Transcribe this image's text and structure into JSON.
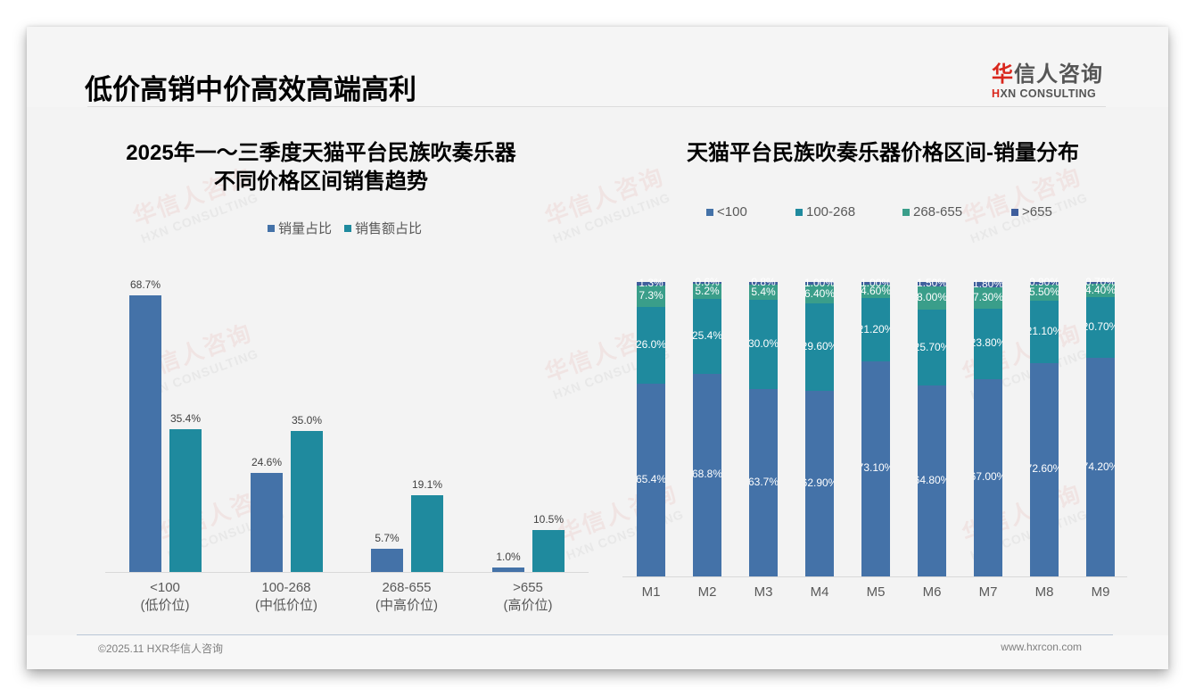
{
  "page": {
    "title": "低价高销中价高效高端高利",
    "logo": {
      "cn_accent": "华",
      "cn_rest": "信人咨询",
      "en_accent": "H",
      "en_rest": "XN CONSULTING"
    },
    "watermark": {
      "cn": "华信人咨询",
      "en": "HXN CONSULTING"
    },
    "footer": {
      "copyright": "©2025.11 HXR华信人咨询",
      "website": "www.hxrcon.com"
    },
    "colors": {
      "sales_volume": "#4472a8",
      "sales_amount": "#1f8a9e",
      "lt100": "#4472a8",
      "r100_268": "#1f8a9e",
      "r268_655": "#3a9e8a",
      "gt655": "#3f5e9c"
    }
  },
  "left_chart": {
    "title_line1": "2025年一～三季度天猫平台民族吹奏乐器",
    "title_line2": "不同价格区间销售趋势",
    "legend": [
      {
        "label": "销量占比"
      },
      {
        "label": "销售额占比"
      }
    ],
    "categories": [
      {
        "name": "<100",
        "sub": "(低价位)",
        "volume": "68.7%",
        "amount": "35.4%"
      },
      {
        "name": "100-268",
        "sub": "(中低价位)",
        "volume": "24.6%",
        "amount": "35.0%"
      },
      {
        "name": "268-655",
        "sub": "(中高价位)",
        "volume": "5.7%",
        "amount": "19.1%"
      },
      {
        "name": ">655",
        "sub": "(高价位)",
        "volume": "1.0%",
        "amount": "10.5%"
      }
    ]
  },
  "right_chart": {
    "title": "天猫平台民族吹奏乐器价格区间-销量分布",
    "legend": [
      {
        "label": "<100"
      },
      {
        "label": "100-268"
      },
      {
        "label": "268-655"
      },
      {
        "label": ">655"
      }
    ],
    "months": [
      {
        "m": "M1",
        "lt100": "65.4%",
        "r100_268": "26.0%",
        "r268_655": "7.3%",
        "gt655": "1.3%"
      },
      {
        "m": "M2",
        "lt100": "68.8%",
        "r100_268": "25.4%",
        "r268_655": "5.2%",
        "gt655": "0.6%"
      },
      {
        "m": "M3",
        "lt100": "63.7%",
        "r100_268": "30.0%",
        "r268_655": "5.4%",
        "gt655": "0.8%"
      },
      {
        "m": "M4",
        "lt100": "62.90%",
        "r100_268": "29.60%",
        "r268_655": "6.40%",
        "gt655": "1.00%"
      },
      {
        "m": "M5",
        "lt100": "73.10%",
        "r100_268": "21.20%",
        "r268_655": "4.60%",
        "gt655": "1.00%"
      },
      {
        "m": "M6",
        "lt100": "64.80%",
        "r100_268": "25.70%",
        "r268_655": "8.00%",
        "gt655": "1.50%"
      },
      {
        "m": "M7",
        "lt100": "67.00%",
        "r100_268": "23.80%",
        "r268_655": "7.30%",
        "gt655": "1.80%"
      },
      {
        "m": "M8",
        "lt100": "72.60%",
        "r100_268": "21.10%",
        "r268_655": "5.50%",
        "gt655": "0.90%"
      },
      {
        "m": "M9",
        "lt100": "74.20%",
        "r100_268": "20.70%",
        "r268_655": "4.40%",
        "gt655": "0.70%"
      }
    ]
  },
  "chart_data": [
    {
      "type": "bar",
      "title": "2025年一～三季度天猫平台民族吹奏乐器不同价格区间销售趋势",
      "categories": [
        "<100 (低价位)",
        "100-268 (中低价位)",
        "268-655 (中高价位)",
        ">655 (高价位)"
      ],
      "series": [
        {
          "name": "销量占比",
          "values": [
            68.7,
            24.6,
            5.7,
            1.0
          ]
        },
        {
          "name": "销售额占比",
          "values": [
            35.4,
            35.0,
            19.1,
            10.5
          ]
        }
      ],
      "xlabel": "",
      "ylabel": "",
      "unit": "%",
      "legend_position": "top",
      "grid": false
    },
    {
      "type": "bar",
      "stacked": true,
      "title": "天猫平台民族吹奏乐器价格区间-销量分布",
      "categories": [
        "M1",
        "M2",
        "M3",
        "M4",
        "M5",
        "M6",
        "M7",
        "M8",
        "M9"
      ],
      "series": [
        {
          "name": "<100",
          "values": [
            65.4,
            68.8,
            63.7,
            62.9,
            73.1,
            64.8,
            67.0,
            72.6,
            74.2
          ]
        },
        {
          "name": "100-268",
          "values": [
            26.0,
            25.4,
            30.0,
            29.6,
            21.2,
            25.7,
            23.8,
            21.1,
            20.7
          ]
        },
        {
          "name": "268-655",
          "values": [
            7.3,
            5.2,
            5.4,
            6.4,
            4.6,
            8.0,
            7.3,
            5.5,
            4.4
          ]
        },
        {
          "name": ">655",
          "values": [
            1.3,
            0.6,
            0.8,
            1.0,
            1.0,
            1.5,
            1.8,
            0.9,
            0.7
          ]
        }
      ],
      "xlabel": "",
      "ylabel": "",
      "unit": "%",
      "ylim": [
        0,
        100
      ],
      "legend_position": "top",
      "grid": false
    }
  ]
}
